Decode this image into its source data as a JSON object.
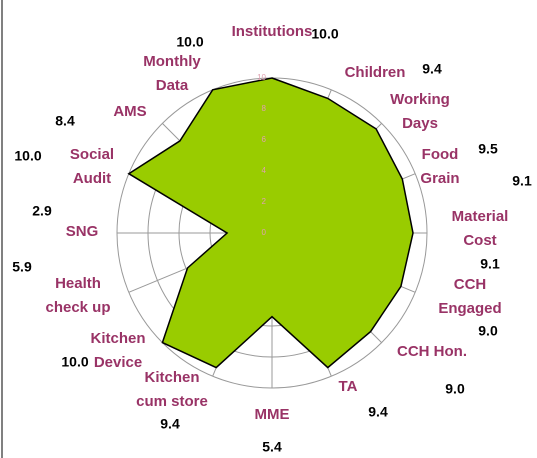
{
  "chart_data": {
    "type": "radar",
    "categories": [
      "Institutions",
      "Children",
      "Working Days",
      "Food Grain",
      "Material Cost",
      "CCH Engaged",
      "CCH Hon.",
      "TA",
      "MME",
      "Kitchen cum store",
      "Kitchen Device",
      "Health check up",
      "SNG",
      "Social Audit",
      "AMS",
      "Monthly Data"
    ],
    "values": [
      10,
      9.4,
      9.5,
      9.1,
      9.1,
      9,
      9,
      9.4,
      5.4,
      9.4,
      10,
      5.9,
      2.9,
      10,
      8.4,
      10
    ],
    "value_labels": [
      "10.0",
      "9.4",
      "9.5",
      "9.1",
      "9.1",
      "9.0",
      "9.0",
      "9.4",
      "5.4",
      "9.4",
      "10.0",
      "5.9",
      "2.9",
      "10.0",
      "8.4",
      "10.0"
    ],
    "color": "#99cc00",
    "ylim": [
      0,
      10
    ],
    "yticks": [
      0,
      2,
      4,
      6,
      8,
      10
    ],
    "grid": true
  }
}
